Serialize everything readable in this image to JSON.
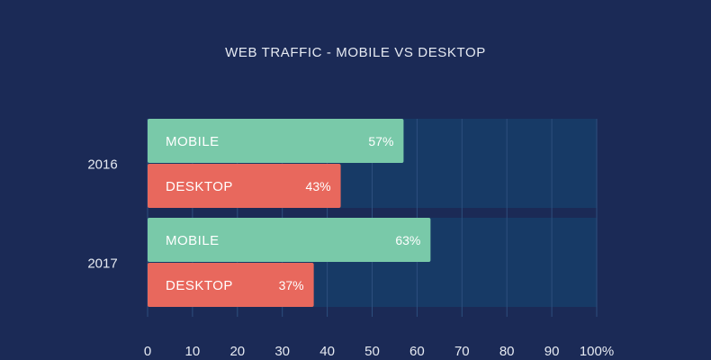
{
  "chart_data": {
    "type": "bar",
    "orientation": "horizontal",
    "title": "WEB TRAFFIC - MOBILE VS DESKTOP",
    "categories": [
      "2016",
      "2017"
    ],
    "series": [
      {
        "name": "MOBILE",
        "values": [
          57,
          63
        ],
        "value_labels": [
          "57%",
          "63%"
        ],
        "color": "#79c9a9"
      },
      {
        "name": "DESKTOP",
        "values": [
          43,
          37
        ],
        "value_labels": [
          "43%",
          "37%"
        ],
        "color": "#e8685d"
      }
    ],
    "xlim": [
      0,
      100
    ],
    "x_ticks": [
      "0",
      "10",
      "20",
      "30",
      "40",
      "50",
      "60",
      "70",
      "80",
      "90",
      "100%"
    ],
    "grid": true,
    "background_color": "#1b2a56",
    "band_color": "#173a66"
  }
}
